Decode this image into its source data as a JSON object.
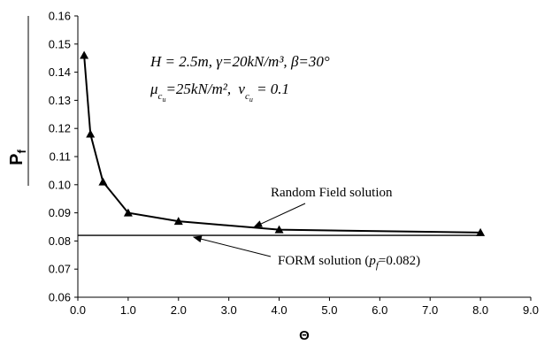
{
  "chart_data": {
    "type": "line",
    "xlabel": "Θ",
    "ylabel": "P",
    "ylabel_sub": "f",
    "xlim": [
      0,
      9
    ],
    "ylim": [
      0.06,
      0.16
    ],
    "x_ticks": [
      "0.0",
      "1.0",
      "2.0",
      "3.0",
      "4.0",
      "5.0",
      "6.0",
      "7.0",
      "8.0",
      "9.0"
    ],
    "y_ticks": [
      "0.06",
      "0.07",
      "0.08",
      "0.09",
      "0.10",
      "0.11",
      "0.12",
      "0.13",
      "0.14",
      "0.15",
      "0.16"
    ],
    "grid": false,
    "series": [
      {
        "name": "Random Field solution",
        "marker": "triangle",
        "color": "#000000",
        "x": [
          0.125,
          0.25,
          0.5,
          1.0,
          2.0,
          4.0,
          8.0
        ],
        "y": [
          0.146,
          0.118,
          0.101,
          0.09,
          0.087,
          0.084,
          0.083
        ]
      },
      {
        "name": "FORM solution",
        "color": "#000000",
        "x": [
          0.0,
          8.0
        ],
        "y": [
          0.082,
          0.082
        ]
      }
    ],
    "parameters": {
      "line1": {
        "H": "H = 2.5m,",
        "gamma": "γ=20kN/m³,",
        "beta": "β=30°"
      },
      "line2": {
        "mu": "μ",
        "mu_value": "=25kN/m²,",
        "nu": "v",
        "nu_value": " = 0.1",
        "sub_c": "c",
        "sub_u": "u"
      }
    },
    "annotations": [
      {
        "text": "Random Field solution",
        "arrow_to_x": 3.5,
        "arrow_to_y": 0.0843
      },
      {
        "text": "FORM solution (",
        "pf_symbol": "p",
        "pf_sub": "f",
        "pf_value": "=0.082)",
        "arrow_to_x": 2.3,
        "arrow_to_y": 0.082
      }
    ]
  }
}
